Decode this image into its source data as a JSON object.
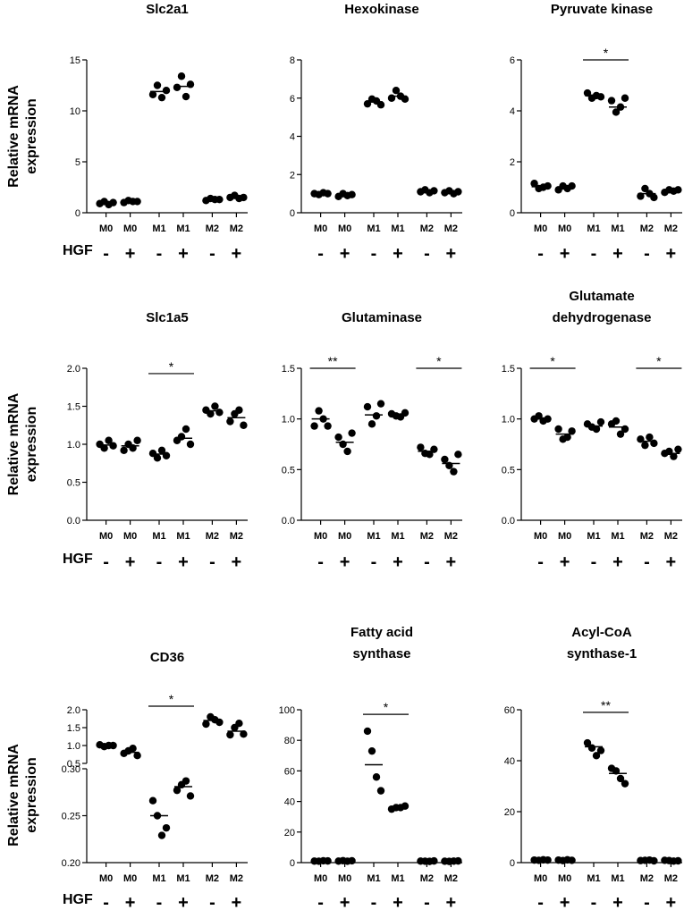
{
  "figure": {
    "ylabel_lines": [
      "Relative mRNA",
      "expression"
    ],
    "treatment_label": "HGF",
    "treatment_signs": [
      "-",
      "+",
      "-",
      "+",
      "-",
      "+"
    ]
  },
  "chart_data": [
    {
      "type": "scatter",
      "title": [
        "Slc2a1"
      ],
      "ylabel": "Relative mRNA expression",
      "categories": [
        "M0",
        "M0",
        "M1",
        "M1",
        "M2",
        "M2"
      ],
      "hgf": [
        "-",
        "+",
        "-",
        "+",
        "-",
        "+"
      ],
      "ylim": [
        0,
        15
      ],
      "yticks": [
        0,
        5,
        10,
        15
      ],
      "ytick_labels": [
        "0",
        "5",
        "10",
        "15"
      ],
      "points": [
        [
          0.9,
          1.1,
          0.8,
          1.0
        ],
        [
          1.0,
          1.2,
          1.1,
          1.1
        ],
        [
          11.6,
          12.5,
          11.3,
          12.0
        ],
        [
          12.3,
          13.4,
          11.4,
          12.6
        ],
        [
          1.2,
          1.4,
          1.3,
          1.3
        ],
        [
          1.5,
          1.7,
          1.4,
          1.5
        ]
      ],
      "means": [
        0.95,
        1.1,
        11.9,
        12.4,
        1.3,
        1.5
      ],
      "significance": []
    },
    {
      "type": "scatter",
      "title": [
        "Hexokinase"
      ],
      "ylabel": "Relative mRNA expression",
      "categories": [
        "M0",
        "M0",
        "M1",
        "M1",
        "M2",
        "M2"
      ],
      "hgf": [
        "-",
        "+",
        "-",
        "+",
        "-",
        "+"
      ],
      "ylim": [
        0,
        8
      ],
      "yticks": [
        0,
        2,
        4,
        6,
        8
      ],
      "ytick_labels": [
        "0",
        "2",
        "4",
        "6",
        "8"
      ],
      "points": [
        [
          1.0,
          0.95,
          1.05,
          1.0
        ],
        [
          0.85,
          1.0,
          0.9,
          0.95
        ],
        [
          5.7,
          5.95,
          5.85,
          5.65
        ],
        [
          6.0,
          6.4,
          6.1,
          5.95
        ],
        [
          1.1,
          1.2,
          1.05,
          1.15
        ],
        [
          1.05,
          1.15,
          1.0,
          1.1
        ]
      ],
      "means": [
        1.0,
        0.92,
        5.8,
        6.1,
        1.12,
        1.08
      ],
      "significance": []
    },
    {
      "type": "scatter",
      "title": [
        "Pyruvate kinase"
      ],
      "ylabel": "Relative mRNA expression",
      "categories": [
        "M0",
        "M0",
        "M1",
        "M1",
        "M2",
        "M2"
      ],
      "hgf": [
        "-",
        "+",
        "-",
        "+",
        "-",
        "+"
      ],
      "ylim": [
        0,
        6
      ],
      "yticks": [
        0,
        2,
        4,
        6
      ],
      "ytick_labels": [
        "0",
        "2",
        "4",
        "6"
      ],
      "points": [
        [
          1.15,
          0.95,
          1.0,
          1.05
        ],
        [
          0.9,
          1.05,
          0.95,
          1.05
        ],
        [
          4.7,
          4.5,
          4.6,
          4.55
        ],
        [
          4.4,
          3.95,
          4.15,
          4.5
        ],
        [
          0.65,
          0.95,
          0.75,
          0.6
        ],
        [
          0.8,
          0.9,
          0.85,
          0.9
        ]
      ],
      "means": [
        1.02,
        0.98,
        4.6,
        4.15,
        0.75,
        0.86
      ],
      "significance": [
        {
          "from": 2,
          "to": 3,
          "y": 6.0,
          "label": "*"
        }
      ]
    },
    {
      "type": "scatter",
      "title": [
        "Slc1a5"
      ],
      "ylabel": "Relative mRNA expression",
      "categories": [
        "M0",
        "M0",
        "M1",
        "M1",
        "M2",
        "M2"
      ],
      "hgf": [
        "-",
        "+",
        "-",
        "+",
        "-",
        "+"
      ],
      "ylim": [
        0,
        2
      ],
      "yticks": [
        0,
        0.5,
        1.0,
        1.5,
        2.0
      ],
      "ytick_labels": [
        "0.0",
        "0.5",
        "1.0",
        "1.5",
        "2.0"
      ],
      "points": [
        [
          1.0,
          0.95,
          1.05,
          0.98
        ],
        [
          0.92,
          1.0,
          0.95,
          1.05
        ],
        [
          0.88,
          0.82,
          0.92,
          0.85
        ],
        [
          1.05,
          1.1,
          1.2,
          1.0
        ],
        [
          1.45,
          1.4,
          1.5,
          1.42
        ],
        [
          1.3,
          1.4,
          1.45,
          1.25
        ]
      ],
      "means": [
        0.99,
        0.98,
        0.87,
        1.08,
        1.44,
        1.35
      ],
      "significance": [
        {
          "from": 2,
          "to": 3,
          "y": 1.93,
          "label": "*"
        }
      ]
    },
    {
      "type": "scatter",
      "title": [
        "Glutaminase"
      ],
      "ylabel": "Relative mRNA expression",
      "categories": [
        "M0",
        "M0",
        "M1",
        "M1",
        "M2",
        "M2"
      ],
      "hgf": [
        "-",
        "+",
        "-",
        "+",
        "-",
        "+"
      ],
      "ylim": [
        0,
        1.5
      ],
      "yticks": [
        0,
        0.5,
        1.0,
        1.5
      ],
      "ytick_labels": [
        "0.0",
        "0.5",
        "1.0",
        "1.5"
      ],
      "points": [
        [
          0.93,
          1.08,
          1.0,
          0.93
        ],
        [
          0.82,
          0.75,
          0.68,
          0.86
        ],
        [
          1.12,
          0.95,
          1.03,
          1.15
        ],
        [
          1.05,
          1.03,
          1.02,
          1.06
        ],
        [
          0.72,
          0.66,
          0.65,
          0.7
        ],
        [
          0.6,
          0.54,
          0.48,
          0.65
        ]
      ],
      "means": [
        1.0,
        0.77,
        1.04,
        1.04,
        0.68,
        0.56
      ],
      "significance": [
        {
          "from": 0,
          "to": 1,
          "y": 1.5,
          "label": "**"
        },
        {
          "from": 4,
          "to": 5,
          "y": 1.5,
          "label": "*"
        }
      ]
    },
    {
      "type": "scatter",
      "title": [
        "Glutamate",
        "dehydrogenase"
      ],
      "ylabel": "Relative mRNA expression",
      "categories": [
        "M0",
        "M0",
        "M1",
        "M1",
        "M2",
        "M2"
      ],
      "hgf": [
        "-",
        "+",
        "-",
        "+",
        "-",
        "+"
      ],
      "ylim": [
        0,
        1.5
      ],
      "yticks": [
        0,
        0.5,
        1.0,
        1.5
      ],
      "ytick_labels": [
        "0.0",
        "0.5",
        "1.0",
        "1.5"
      ],
      "points": [
        [
          1.0,
          1.03,
          0.98,
          1.0
        ],
        [
          0.9,
          0.8,
          0.82,
          0.88
        ],
        [
          0.95,
          0.92,
          0.9,
          0.97
        ],
        [
          0.95,
          0.98,
          0.85,
          0.9
        ],
        [
          0.8,
          0.74,
          0.82,
          0.76
        ],
        [
          0.66,
          0.68,
          0.63,
          0.7
        ]
      ],
      "means": [
        1.0,
        0.85,
        0.93,
        0.92,
        0.78,
        0.66
      ],
      "significance": [
        {
          "from": 0,
          "to": 1,
          "y": 1.5,
          "label": "*"
        },
        {
          "from": 4,
          "to": 5,
          "y": 1.5,
          "label": "*"
        }
      ]
    },
    {
      "type": "scatter",
      "title": [
        "CD36"
      ],
      "ylabel": "Relative mRNA expression",
      "categories": [
        "M0",
        "M0",
        "M1",
        "M1",
        "M2",
        "M2"
      ],
      "hgf": [
        "-",
        "+",
        "-",
        "+",
        "-",
        "+"
      ],
      "broken_axis": {
        "upper_ylim": [
          0.5,
          2.0
        ],
        "upper_ticks": [
          "0.5",
          "1.0",
          "1.5",
          "2.0"
        ],
        "lower_ylim": [
          0.2,
          0.3
        ],
        "lower_ticks": [
          "0.20",
          "0.25",
          "0.30"
        ]
      },
      "points": [
        [
          1.02,
          0.97,
          1.0,
          1.0
        ],
        [
          0.78,
          0.85,
          0.92,
          0.72
        ],
        [
          0.266,
          0.25,
          0.229,
          0.237
        ],
        [
          0.277,
          0.283,
          0.287,
          0.271
        ],
        [
          1.6,
          1.8,
          1.72,
          1.65
        ],
        [
          1.3,
          1.5,
          1.62,
          1.32
        ]
      ],
      "means": [
        1.0,
        0.81,
        0.25,
        0.281,
        1.7,
        1.4
      ],
      "significance": [
        {
          "from": 2,
          "to": 3,
          "y": 2.1,
          "label": "*"
        }
      ]
    },
    {
      "type": "scatter",
      "title": [
        "Fatty acid",
        "synthase"
      ],
      "ylabel": "Relative mRNA expression",
      "categories": [
        "M0",
        "M0",
        "M1",
        "M1",
        "M2",
        "M2"
      ],
      "hgf": [
        "-",
        "+",
        "-",
        "+",
        "-",
        "+"
      ],
      "ylim": [
        0,
        100
      ],
      "yticks": [
        0,
        20,
        40,
        60,
        80,
        100
      ],
      "ytick_labels": [
        "0",
        "20",
        "40",
        "60",
        "80",
        "100"
      ],
      "points": [
        [
          1.0,
          0.9,
          1.2,
          1.1
        ],
        [
          1.0,
          1.3,
          0.9,
          1.2
        ],
        [
          86,
          73,
          56,
          47
        ],
        [
          35,
          36,
          36,
          37
        ],
        [
          1.0,
          0.9,
          0.8,
          1.1
        ],
        [
          0.9,
          0.8,
          1.0,
          1.1
        ]
      ],
      "means": [
        1.05,
        1.1,
        64,
        36,
        0.95,
        0.95
      ],
      "significance": [
        {
          "from": 2,
          "to": 3,
          "y": 97,
          "label": "*"
        }
      ]
    },
    {
      "type": "scatter",
      "title": [
        "Acyl-CoA",
        "synthase-1"
      ],
      "ylabel": "Relative mRNA expression",
      "categories": [
        "M0",
        "M0",
        "M1",
        "M1",
        "M2",
        "M2"
      ],
      "hgf": [
        "-",
        "+",
        "-",
        "+",
        "-",
        "+"
      ],
      "ylim": [
        0,
        60
      ],
      "yticks": [
        0,
        20,
        40,
        60
      ],
      "ytick_labels": [
        "0",
        "20",
        "40",
        "60"
      ],
      "points": [
        [
          1.0,
          0.9,
          1.1,
          1.0
        ],
        [
          1.0,
          0.8,
          1.1,
          0.9
        ],
        [
          47,
          45,
          42,
          44
        ],
        [
          37,
          36,
          33,
          31
        ],
        [
          0.8,
          0.9,
          1.0,
          0.7
        ],
        [
          0.9,
          0.8,
          0.6,
          0.7
        ]
      ],
      "means": [
        1.0,
        0.95,
        45.5,
        35,
        0.85,
        0.75
      ],
      "significance": [
        {
          "from": 2,
          "to": 3,
          "y": 59,
          "label": "**"
        }
      ]
    }
  ]
}
